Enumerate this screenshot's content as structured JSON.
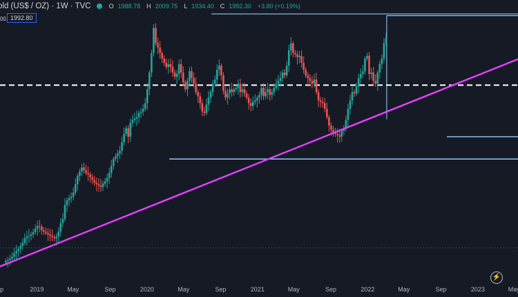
{
  "legend": {
    "symbol": "old (US$ / OZ) · 1W · TVC",
    "open_key": "O",
    "open": "1988.78",
    "high_key": "H",
    "high": "2009.75",
    "low_key": "L",
    "low": "1934.40",
    "close_key": "C",
    "close": "1992.30",
    "change": "+3.80 (+0.19%)"
  },
  "price_box": "1992.80",
  "left_value": "00",
  "bolt_icon": "lightning-icon",
  "colors": {
    "up": "#26a69a",
    "down": "#ef5350",
    "trendline": "#e040fb",
    "box_line": "#90caf9"
  },
  "chart_data": {
    "type": "candlestick",
    "x_tick_labels": [
      "p",
      "2019",
      "May",
      "Sep",
      "2020",
      "May",
      "Sep",
      "2021",
      "May",
      "Sep",
      "2022",
      "May",
      "Sep",
      "2023",
      "May"
    ],
    "x_ticks": [
      "2018-09",
      "2019-01",
      "2019-05",
      "2019-09",
      "2020-01",
      "2020-05",
      "2020-09",
      "2021-01",
      "2021-05",
      "2021-09",
      "2022-01",
      "2022-05",
      "2022-09",
      "2023-01",
      "2023-05"
    ],
    "x_range": [
      "2018-09-01",
      "2023-05-14"
    ],
    "y_range": [
      1120,
      2130
    ],
    "grid": false,
    "weekly_closes": [
      1195,
      1198,
      1203,
      1210,
      1222,
      1230,
      1238,
      1248,
      1260,
      1275,
      1282,
      1285,
      1290,
      1298,
      1310,
      1320,
      1318,
      1305,
      1300,
      1295,
      1290,
      1285,
      1280,
      1276,
      1282,
      1300,
      1330,
      1345,
      1395,
      1412,
      1420,
      1425,
      1440,
      1470,
      1500,
      1515,
      1530,
      1520,
      1510,
      1505,
      1495,
      1485,
      1475,
      1470,
      1465,
      1460,
      1472,
      1480,
      1492,
      1510,
      1535,
      1560,
      1570,
      1580,
      1590,
      1620,
      1650,
      1670,
      1640,
      1690,
      1700,
      1705,
      1710,
      1725,
      1730,
      1740,
      1760,
      1810,
      1870,
      1940,
      2030,
      1975,
      1960,
      1940,
      1920,
      1905,
      1890,
      1900,
      1890,
      1870,
      1855,
      1865,
      1900,
      1870,
      1835,
      1810,
      1840,
      1875,
      1850,
      1830,
      1800,
      1785,
      1760,
      1730,
      1725,
      1755,
      1780,
      1800,
      1830,
      1845,
      1880,
      1895,
      1860,
      1805,
      1780,
      1795,
      1810,
      1800,
      1810,
      1815,
      1830,
      1800,
      1810,
      1795,
      1780,
      1760,
      1750,
      1765,
      1770,
      1780,
      1790,
      1815,
      1785,
      1800,
      1810,
      1790,
      1800,
      1815,
      1830,
      1840,
      1850,
      1870,
      1860,
      1895,
      1950,
      1975,
      1940,
      1935,
      1925,
      1930,
      1905,
      1880,
      1860,
      1850,
      1840,
      1830,
      1845,
      1800,
      1770,
      1765,
      1760,
      1740,
      1710,
      1680,
      1665,
      1655,
      1650,
      1645,
      1640,
      1660,
      1670,
      1700,
      1740,
      1770,
      1800,
      1795,
      1820,
      1850,
      1865,
      1875,
      1920,
      1930,
      1865,
      1870,
      1840,
      1830,
      1870,
      1900,
      1920,
      1975,
      1992
    ],
    "series": [
      {
        "name": "",
        "type": "trendline",
        "x": [
          "2018-09-01",
          "2023-05-14"
        ],
        "y": [
          1175,
          1918
        ]
      }
    ],
    "hlines": [
      {
        "style": "dashed",
        "y": 1825
      },
      {
        "style": "solid",
        "y": 1560,
        "x_start": "2020-03-15"
      },
      {
        "style": "solid",
        "y": 1640,
        "x_start": "2022-09-20"
      },
      {
        "style": "dashed-faint",
        "y": 1242
      }
    ],
    "boxes": [
      {
        "x_start": "2020-08-01",
        "x_end": "2023-05-14",
        "y_top": 2080
      },
      {
        "x_start": "2022-03-05",
        "x_end": "2023-05-14",
        "y_top": 2074
      }
    ]
  }
}
